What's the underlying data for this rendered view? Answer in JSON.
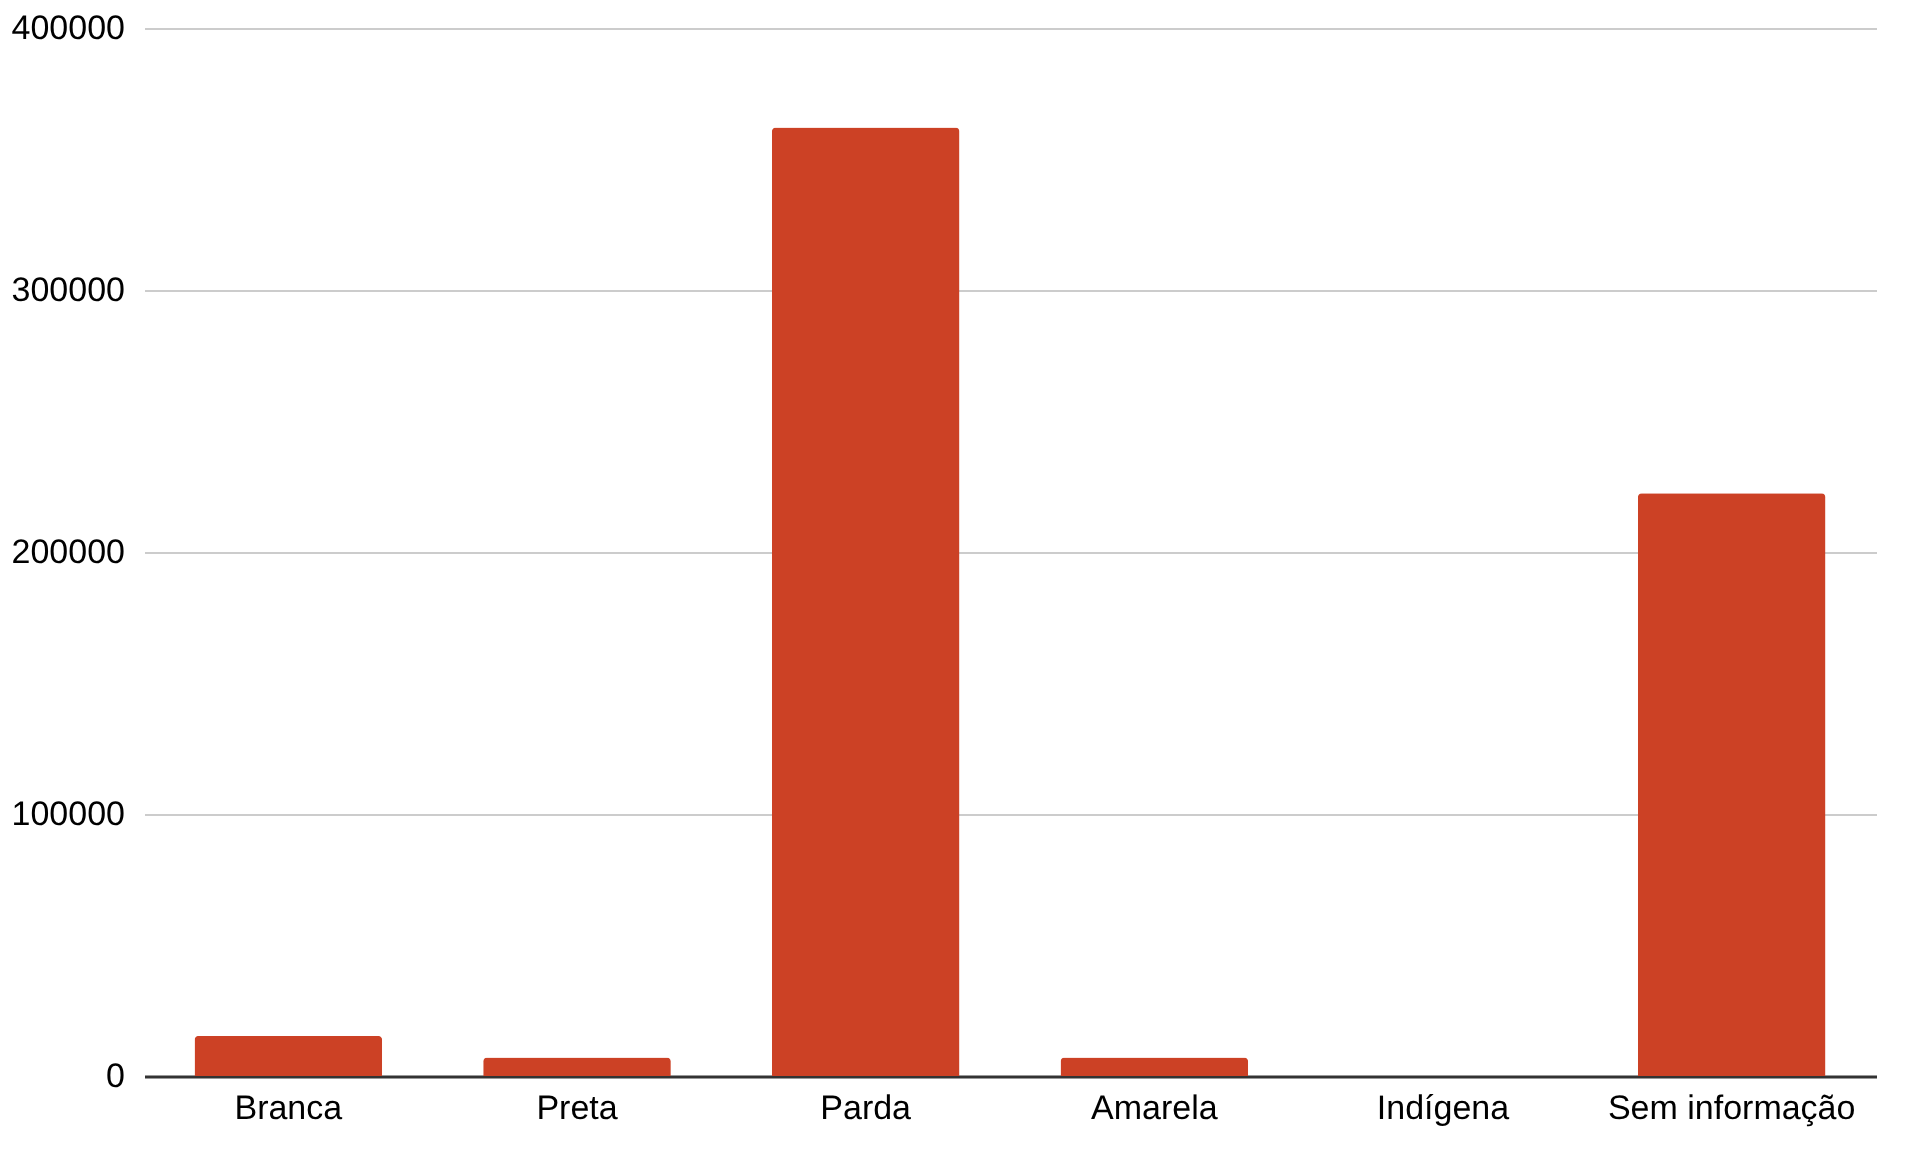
{
  "chart_data": {
    "type": "bar",
    "categories": [
      "Branca",
      "Preta",
      "Parda",
      "Amarela",
      "Indígena",
      "Sem informação"
    ],
    "values": [
      15300,
      7100,
      362000,
      7100,
      0,
      222400
    ],
    "color": "#cc4125",
    "ylim": [
      0,
      400000
    ],
    "yticks": [
      0,
      100000,
      200000,
      300000,
      400000
    ],
    "grid": "y"
  }
}
